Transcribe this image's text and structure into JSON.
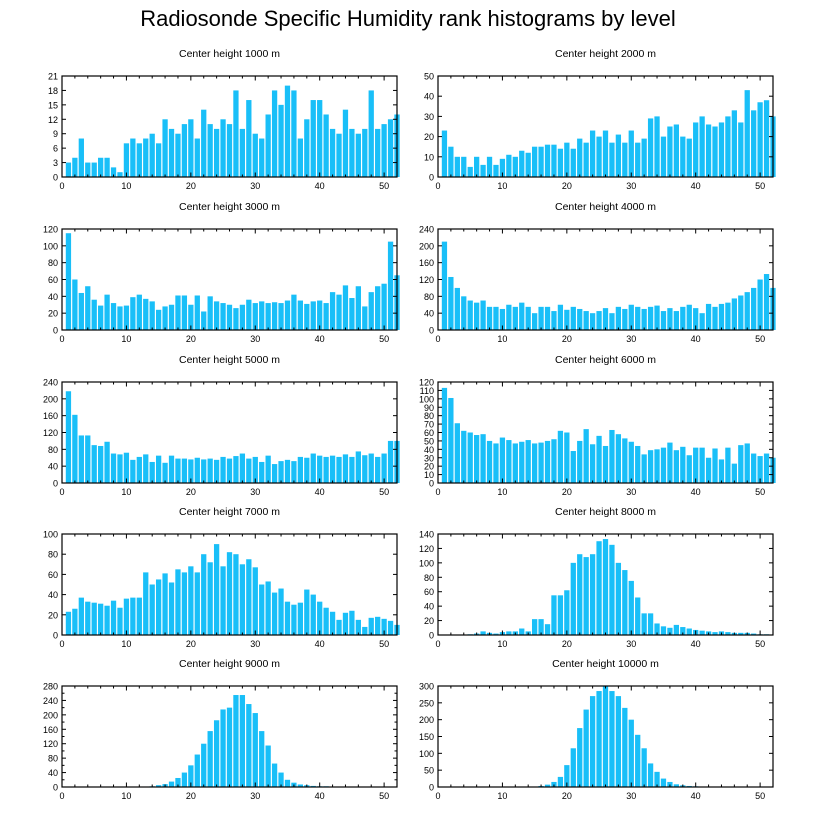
{
  "title": "Radiosonde Specific Humidity rank histograms by level",
  "colors": {
    "bar": "#19BFF8",
    "axis": "#000000",
    "background": "#ffffff"
  },
  "chart_data": [
    {
      "type": "bar",
      "title": "Center height 1000 m",
      "xlabel": "",
      "ylabel": "",
      "xlim": [
        0,
        52
      ],
      "ylim": [
        0,
        21
      ],
      "yticks": [
        0,
        3,
        6,
        9,
        12,
        15,
        18,
        21
      ],
      "xticks": [
        0,
        10,
        20,
        30,
        40,
        50
      ],
      "x_start": 1,
      "values": [
        3,
        4,
        8,
        3,
        3,
        4,
        4,
        2,
        1,
        7,
        8,
        7,
        8,
        9,
        7,
        12,
        10,
        9,
        11,
        12,
        8,
        14,
        11,
        10,
        12,
        11,
        18,
        10,
        16,
        9,
        8,
        13,
        18,
        15,
        19,
        18,
        8,
        12,
        16,
        16,
        13,
        10,
        9,
        14,
        10,
        9,
        10,
        18,
        10,
        11,
        12,
        13
      ]
    },
    {
      "type": "bar",
      "title": "Center height 2000 m",
      "xlabel": "",
      "ylabel": "",
      "xlim": [
        0,
        52
      ],
      "ylim": [
        0,
        50
      ],
      "yticks": [
        0,
        10,
        20,
        30,
        40,
        50
      ],
      "xticks": [
        0,
        10,
        20,
        30,
        40,
        50
      ],
      "x_start": 1,
      "values": [
        23,
        15,
        10,
        10,
        5,
        10,
        6,
        10,
        6,
        9,
        11,
        10,
        13,
        12,
        15,
        15,
        16,
        16,
        14,
        17,
        14,
        19,
        17,
        23,
        20,
        23,
        17,
        21,
        17,
        23,
        17,
        19,
        29,
        30,
        20,
        25,
        26,
        20,
        19,
        27,
        30,
        26,
        25,
        27,
        30,
        33,
        27,
        43,
        33,
        37,
        38,
        30
      ]
    },
    {
      "type": "bar",
      "title": "Center height 3000 m",
      "xlabel": "",
      "ylabel": "",
      "xlim": [
        0,
        52
      ],
      "ylim": [
        0,
        120
      ],
      "yticks": [
        0,
        20,
        40,
        60,
        80,
        100,
        120
      ],
      "xticks": [
        0,
        10,
        20,
        30,
        40,
        50
      ],
      "x_start": 1,
      "values": [
        115,
        60,
        44,
        52,
        36,
        29,
        42,
        32,
        28,
        29,
        39,
        42,
        37,
        34,
        24,
        28,
        30,
        41,
        41,
        30,
        41,
        22,
        40,
        34,
        32,
        30,
        26,
        30,
        36,
        32,
        34,
        32,
        33,
        32,
        35,
        42,
        35,
        31,
        34,
        35,
        32,
        45,
        42,
        53,
        38,
        52,
        28,
        45,
        52,
        55,
        105,
        65
      ]
    },
    {
      "type": "bar",
      "title": "Center height 4000 m",
      "xlabel": "",
      "ylabel": "",
      "xlim": [
        0,
        52
      ],
      "ylim": [
        0,
        240
      ],
      "yticks": [
        0,
        40,
        80,
        120,
        160,
        200,
        240
      ],
      "xticks": [
        0,
        10,
        20,
        30,
        40,
        50
      ],
      "x_start": 1,
      "values": [
        210,
        126,
        100,
        80,
        70,
        65,
        70,
        55,
        55,
        50,
        60,
        55,
        65,
        55,
        40,
        55,
        55,
        45,
        60,
        48,
        55,
        50,
        45,
        40,
        45,
        52,
        40,
        55,
        50,
        60,
        55,
        50,
        55,
        58,
        45,
        52,
        45,
        55,
        60,
        52,
        40,
        62,
        55,
        62,
        65,
        75,
        82,
        90,
        100,
        120,
        133,
        100
      ]
    },
    {
      "type": "bar",
      "title": "Center height 5000 m",
      "xlabel": "",
      "ylabel": "",
      "xlim": [
        0,
        52
      ],
      "ylim": [
        0,
        240
      ],
      "yticks": [
        0,
        40,
        80,
        120,
        160,
        200,
        240
      ],
      "xticks": [
        0,
        10,
        20,
        30,
        40,
        50
      ],
      "x_start": 1,
      "values": [
        218,
        162,
        113,
        113,
        90,
        88,
        98,
        70,
        68,
        72,
        55,
        62,
        68,
        50,
        65,
        48,
        65,
        58,
        58,
        56,
        60,
        56,
        58,
        55,
        62,
        58,
        64,
        70,
        58,
        62,
        50,
        65,
        45,
        52,
        55,
        52,
        62,
        60,
        70,
        65,
        62,
        65,
        62,
        68,
        62,
        75,
        66,
        70,
        62,
        70,
        100,
        100
      ]
    },
    {
      "type": "bar",
      "title": "Center height 6000 m",
      "xlabel": "",
      "ylabel": "",
      "xlim": [
        0,
        52
      ],
      "ylim": [
        0,
        120
      ],
      "yticks": [
        0,
        10,
        20,
        30,
        40,
        50,
        60,
        70,
        80,
        90,
        100,
        110,
        120
      ],
      "xticks": [
        0,
        10,
        20,
        30,
        40,
        50
      ],
      "x_start": 1,
      "values": [
        113,
        101,
        71,
        62,
        60,
        57,
        58,
        50,
        47,
        54,
        51,
        47,
        49,
        51,
        47,
        48,
        50,
        52,
        62,
        60,
        38,
        50,
        64,
        46,
        56,
        44,
        63,
        58,
        53,
        49,
        44,
        34,
        39,
        40,
        42,
        48,
        39,
        43,
        33,
        42,
        42,
        30,
        41,
        28,
        42,
        23,
        45,
        47,
        35,
        32,
        35,
        30
      ]
    },
    {
      "type": "bar",
      "title": "Center height 7000 m",
      "xlabel": "",
      "ylabel": "",
      "xlim": [
        0,
        52
      ],
      "ylim": [
        0,
        100
      ],
      "yticks": [
        0,
        20,
        40,
        60,
        80,
        100
      ],
      "xticks": [
        0,
        10,
        20,
        30,
        40,
        50
      ],
      "x_start": 1,
      "values": [
        23,
        26,
        37,
        33,
        32,
        31,
        29,
        34,
        27,
        36,
        37,
        37,
        62,
        50,
        55,
        61,
        52,
        65,
        62,
        68,
        62,
        80,
        72,
        90,
        68,
        82,
        80,
        70,
        75,
        67,
        50,
        53,
        42,
        46,
        33,
        30,
        32,
        45,
        40,
        33,
        27,
        23,
        15,
        22,
        24,
        15,
        8,
        17,
        18,
        16,
        14,
        10
      ]
    },
    {
      "type": "bar",
      "title": "Center height 8000 m",
      "xlabel": "",
      "ylabel": "",
      "xlim": [
        0,
        52
      ],
      "ylim": [
        0,
        140
      ],
      "yticks": [
        0,
        20,
        40,
        60,
        80,
        100,
        120,
        140
      ],
      "xticks": [
        0,
        10,
        20,
        30,
        40,
        50
      ],
      "x_start": 1,
      "values": [
        0,
        0,
        0,
        0,
        1,
        2,
        5,
        3,
        2,
        4,
        5,
        5,
        9,
        5,
        22,
        22,
        15,
        55,
        55,
        62,
        100,
        112,
        108,
        112,
        130,
        133,
        125,
        100,
        90,
        75,
        52,
        30,
        30,
        16,
        12,
        10,
        14,
        11,
        9,
        7,
        6,
        5,
        4,
        5,
        4,
        3,
        3,
        3,
        2,
        1,
        1,
        0
      ]
    },
    {
      "type": "bar",
      "title": "Center height 9000 m",
      "xlabel": "",
      "ylabel": "",
      "xlim": [
        0,
        52
      ],
      "ylim": [
        0,
        280
      ],
      "yticks": [
        0,
        20,
        40,
        60,
        80,
        100,
        120,
        140,
        160,
        180,
        200,
        220,
        240,
        260,
        280
      ],
      "ytick_labels": [
        0,
        40,
        80,
        120,
        160,
        200,
        240,
        280
      ],
      "xticks": [
        0,
        10,
        20,
        30,
        40,
        50
      ],
      "x_start": 1,
      "values": [
        0,
        0,
        0,
        0,
        0,
        0,
        0,
        0,
        0,
        0,
        0,
        0,
        1,
        2,
        5,
        8,
        15,
        25,
        40,
        60,
        90,
        120,
        155,
        185,
        215,
        220,
        255,
        255,
        230,
        205,
        155,
        115,
        65,
        40,
        20,
        12,
        7,
        5,
        3,
        2,
        2,
        1,
        1,
        0,
        0,
        0,
        0,
        0,
        0,
        0,
        0,
        0
      ]
    },
    {
      "type": "bar",
      "title": "Center height 10000 m",
      "xlabel": "",
      "ylabel": "",
      "xlim": [
        0,
        52
      ],
      "ylim": [
        0,
        300
      ],
      "yticks": [
        0,
        50,
        100,
        150,
        200,
        250,
        300
      ],
      "xticks": [
        0,
        10,
        20,
        30,
        40,
        50
      ],
      "x_start": 1,
      "values": [
        0,
        0,
        0,
        0,
        0,
        0,
        0,
        0,
        0,
        0,
        0,
        0,
        0,
        0,
        1,
        3,
        7,
        15,
        30,
        65,
        115,
        175,
        230,
        270,
        285,
        300,
        285,
        270,
        235,
        200,
        155,
        115,
        70,
        45,
        25,
        15,
        8,
        5,
        3,
        2,
        1,
        1,
        0,
        0,
        0,
        0,
        0,
        0,
        0,
        0,
        0,
        0
      ]
    }
  ]
}
